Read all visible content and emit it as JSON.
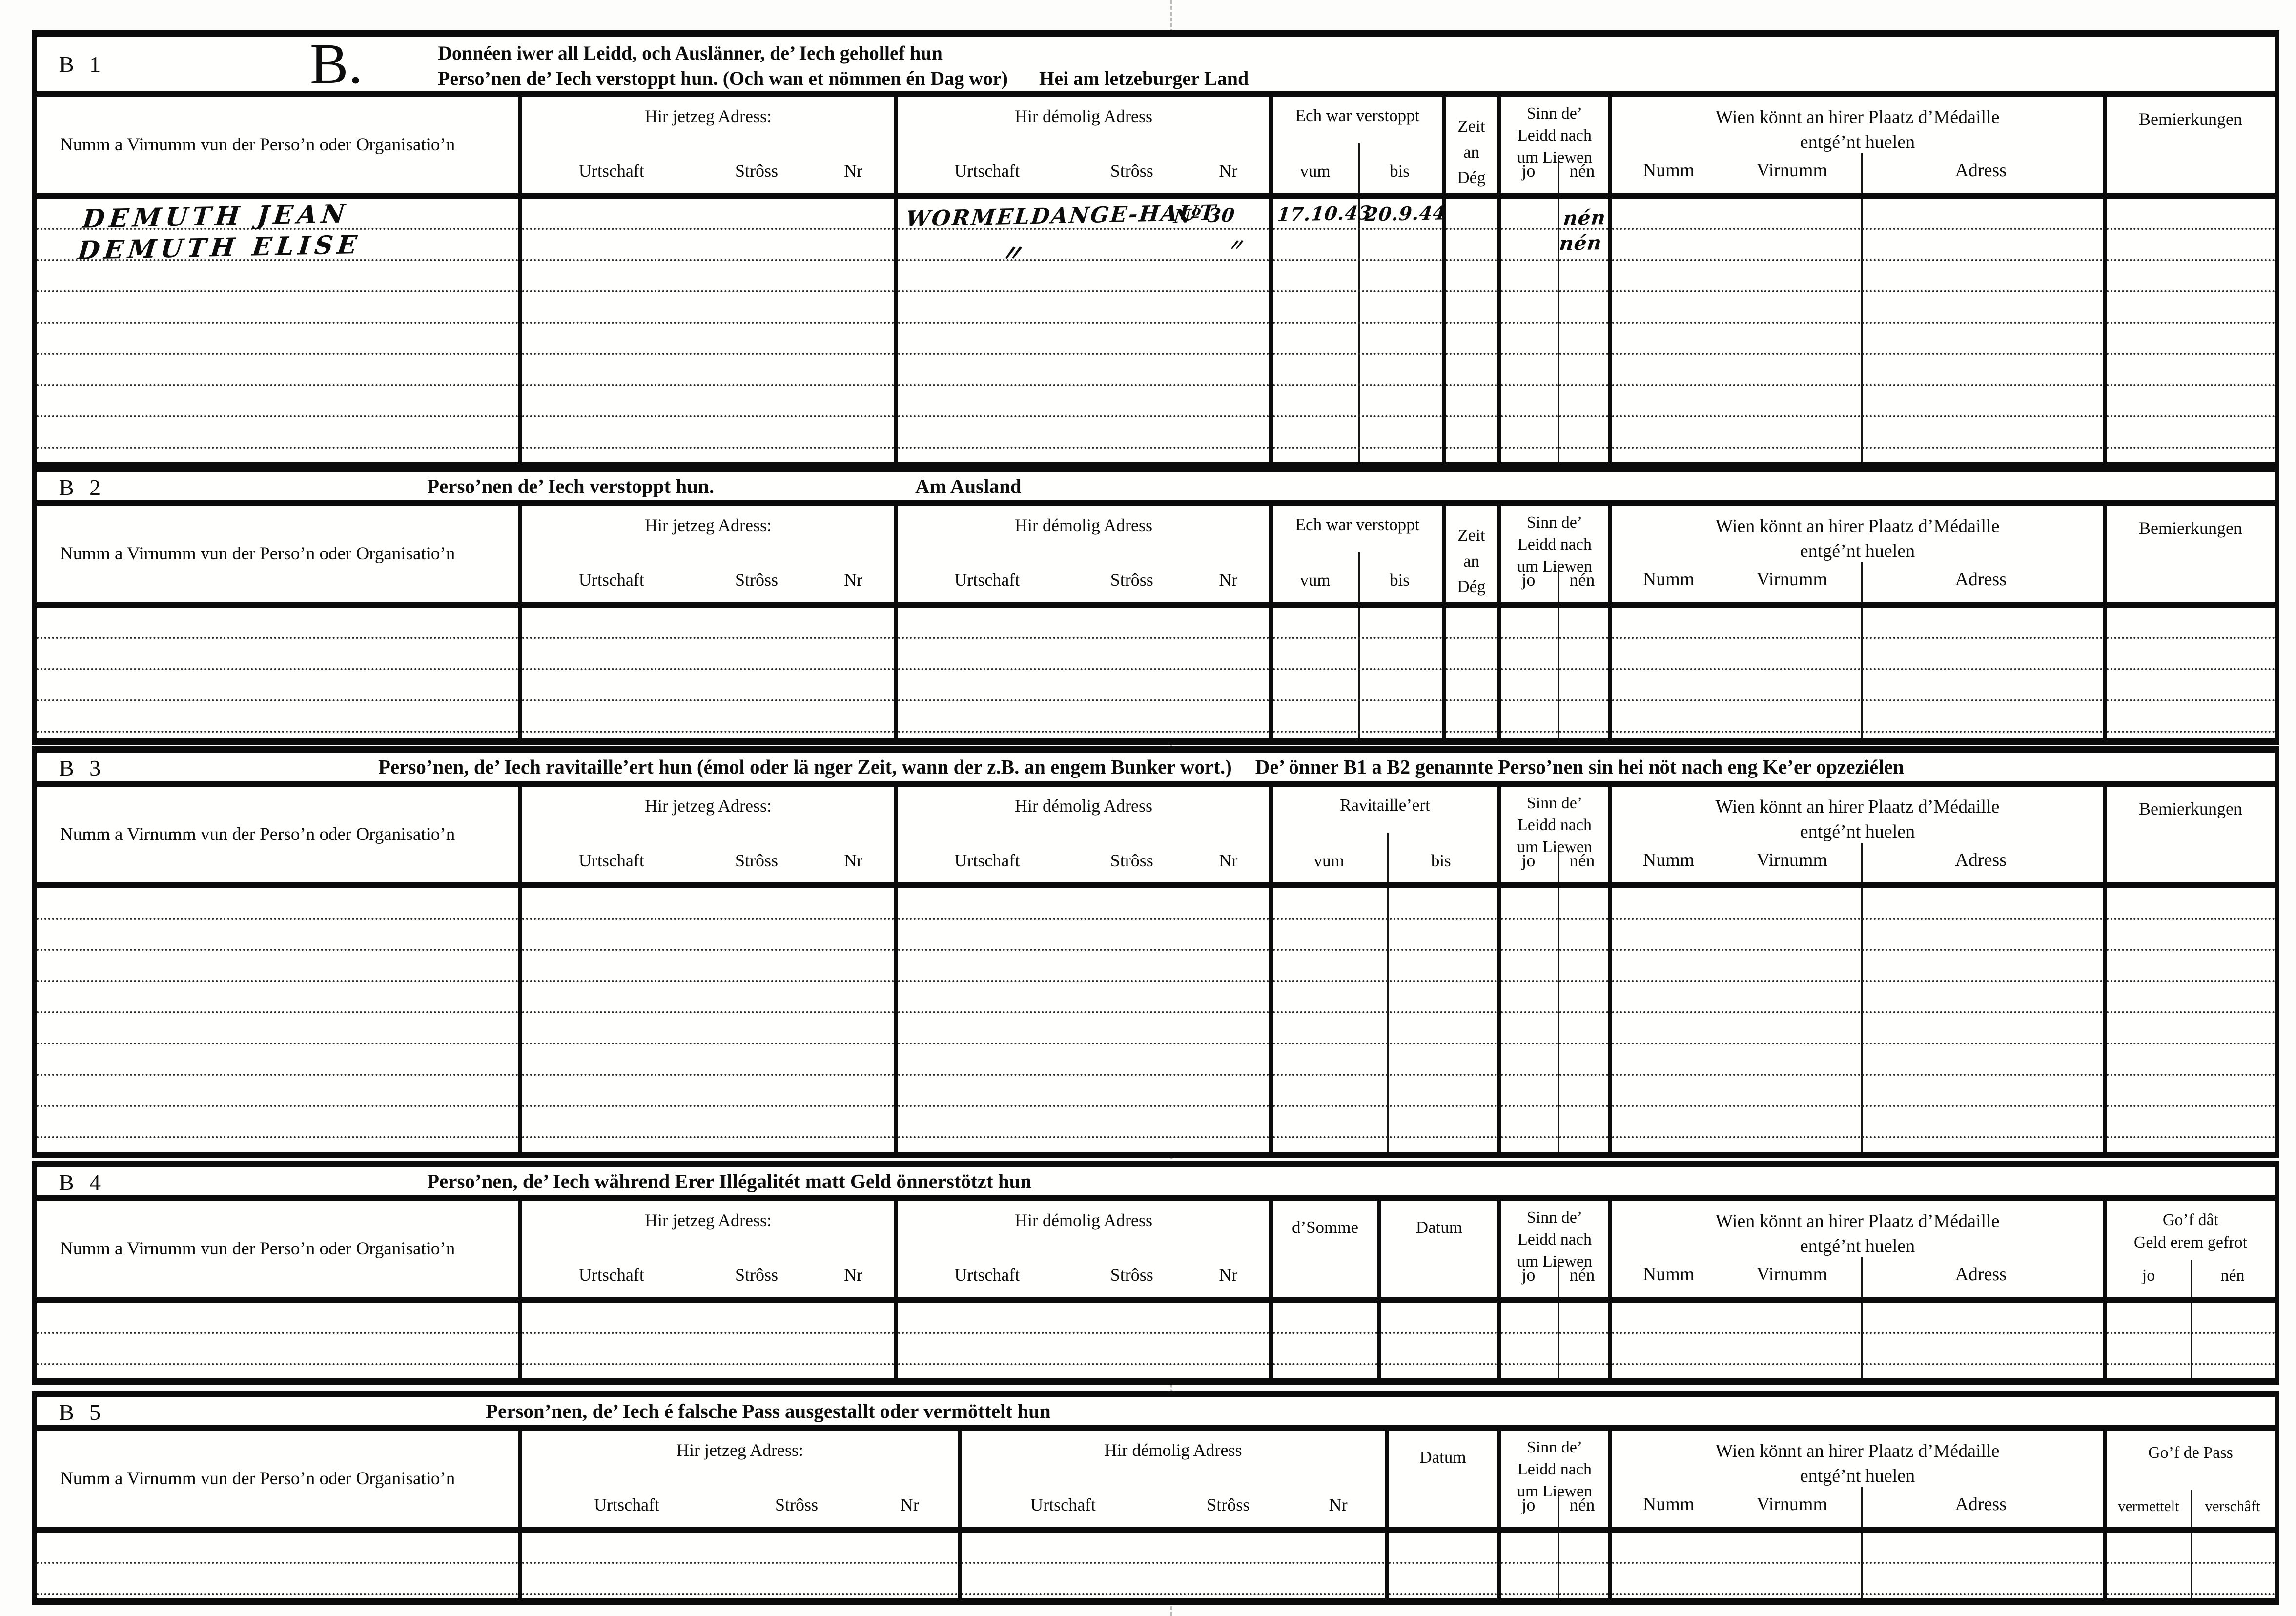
{
  "labels": {
    "name_col": "Numm a Virnumm vun der Perso’n oder Organisatio’n",
    "jetzeg": "Hir jetzeg Adress:",
    "demolig": "Hir démolig Adress",
    "urtschaft": "Urtschaft",
    "stross": "Strôss",
    "nr": "Nr",
    "verstoppt": "Ech war verstoppt",
    "vum": "vum",
    "bis": "bis",
    "zeit1": "Zeit",
    "zeit2": "an",
    "zeit3": "Dég",
    "sinn1": "Sinn  de’",
    "sinn2": "Leidd  nach",
    "sinn3": "um  Liewen",
    "jo": "jo",
    "nen": "nén",
    "wien1": "Wien  könnt  an  hirer  Plaatz  d’Médaille",
    "wien2": "entgé’nt huelen",
    "numm": "Numm",
    "virnumm": "Virnumm",
    "adress": "Adress",
    "bemierkungen": "Bemierkungen",
    "ravitailleert": "Ravitaille’ert",
    "dsomme": "d’Somme",
    "datum": "Datum",
    "gof_geld1": "Go’f  dât",
    "gof_geld2": "Geld  erem  gefrot",
    "gof_pass": "Go’f de Pass",
    "vermettelt": "vermettelt",
    "verschaft": "verschâft"
  },
  "sections": {
    "b1": {
      "label": "B 1",
      "letter": "B.",
      "title_line1": "Donnéen iwer all Leidd, och Auslänner, de’ Iech  gehollef  hun",
      "title_line2": "Perso’nen de’ Iech verstoppt hun. (Och wan et nömmen én Dag wor)",
      "title_note": "Hei am letzeburger Land",
      "row_count": 8
    },
    "b2": {
      "label": "B 2",
      "title": "Perso’nen de’ Iech verstoppt hun.",
      "subtitle": "Am Ausland",
      "row_count": 4
    },
    "b3": {
      "label": "B 3",
      "title": "Perso’nen, de’ Iech ravitaille’ert hun (émol oder lä nger Zeit, wann der z.B. an engem Bunker wort.)",
      "title2": "De’ önner B1 a B2 genannte Perso’nen sin hei nöt nach eng Ke’er opzeziélen",
      "row_count": 8
    },
    "b4": {
      "label": "B 4",
      "title": "Perso’nen, de’ Iech während Erer Illégalitét matt  Geld önnerstötzt hun",
      "row_count": 2
    },
    "b5": {
      "label": "B 5",
      "title": "Person’nen, de’ Iech é falsche Pass ausgestallt oder  vermöttelt hun",
      "row_count": 2
    }
  },
  "entries": {
    "b1": {
      "name1": "DEMUTH  JEAN",
      "name2": "DEMUTH  ELISE",
      "demolig_urtschaft1": "WORMELDANGE-HAUT",
      "demolig_nr1": "Nº 30",
      "demolig_ditto2": "〃",
      "demolig_nr_ditto2": "〃",
      "vum1": "17.10.43",
      "bis1": "20.9.44",
      "nen1": "nén",
      "nen2": "nén"
    }
  }
}
